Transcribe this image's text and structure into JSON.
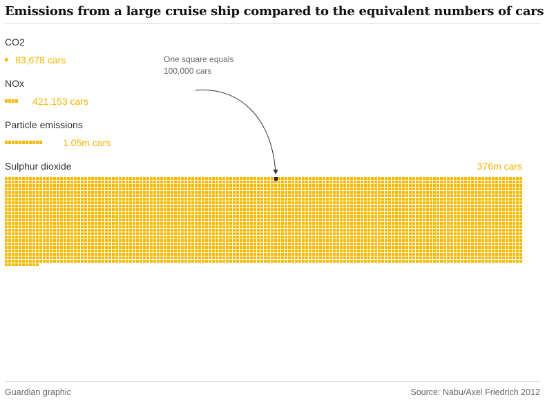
{
  "title": "Emissions from a large cruise ship compared to the equivalent numbers of cars",
  "annotation": "One square equals 100,000 cars",
  "footer": {
    "credit": "Guardian graphic",
    "source": "Source: Nabu/Axel Friedrich 2012"
  },
  "colors": {
    "square": "#f5b800",
    "value_text": "#f2b400",
    "highlight_square": "#222222",
    "arrow": "#333333"
  },
  "chart_data": {
    "type": "waffle",
    "unit": "cars",
    "square_value": 100000,
    "series": [
      {
        "name": "CO2",
        "value": 83678,
        "value_label": "83,678 cars"
      },
      {
        "name": "NOx",
        "value": 421153,
        "value_label": "421,153 cars"
      },
      {
        "name": "Particle emissions",
        "value": 1050000,
        "value_label": "1.05m cars"
      },
      {
        "name": "Sulphur dioxide",
        "value": 376000000,
        "value_label": "376m cars"
      }
    ]
  }
}
